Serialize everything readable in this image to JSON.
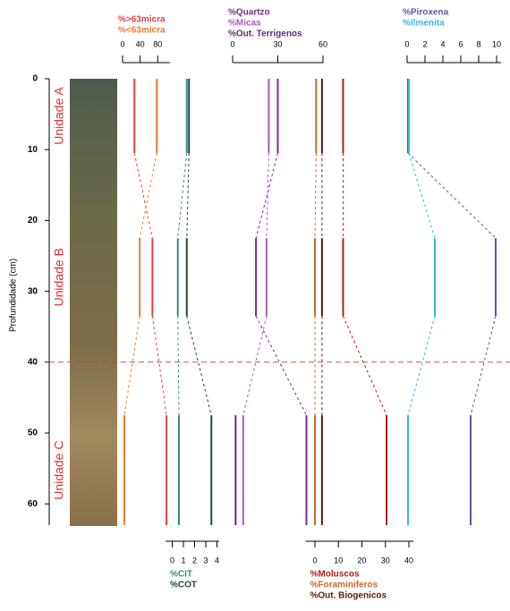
{
  "chart_data": {
    "type": "core-log",
    "y_label": "Profundidade (cm)",
    "ylim": [
      0,
      63
    ],
    "yticks": [
      0,
      10,
      20,
      30,
      40,
      50,
      60
    ],
    "reference_depth": 40,
    "reference_color": "#e03030",
    "units": [
      {
        "name": "Unidade A",
        "top": 0,
        "bottom": 10.5
      },
      {
        "name": "Unidade B",
        "top": 22.5,
        "bottom": 33.5
      },
      {
        "name": "Unidade C",
        "top": 47.5,
        "bottom": 63
      }
    ],
    "panels": [
      {
        "axis": "top",
        "xlim": [
          0,
          108
        ],
        "xticks": [
          0,
          40,
          80
        ],
        "series": [
          {
            "name": "%>63micra",
            "color": "#e0404a",
            "values": [
              27,
              68,
              100
            ]
          },
          {
            "name": "%<63micra",
            "color": "#f07a2a",
            "values": [
              78,
              39,
              4
            ]
          }
        ]
      },
      {
        "axis": "bottom",
        "xlim": [
          -0.6,
          4.2
        ],
        "xticks": [
          0,
          1,
          2,
          3,
          4
        ],
        "series": [
          {
            "name": "%CIT",
            "color": "#3a8a80",
            "values": [
              1.3,
              0.5,
              0.6
            ]
          },
          {
            "name": "%COT",
            "color": "#1d4a40",
            "values": [
              1.5,
              1.3,
              3.5
            ]
          }
        ]
      },
      {
        "axis": "top",
        "xlim": [
          0,
          60
        ],
        "xticks": [
          0,
          30,
          60
        ],
        "series": [
          {
            "name": "%Quartzo",
            "color": "#7a2a8a",
            "values": [
              30,
              15.5,
              49
            ]
          },
          {
            "name": "%Micas",
            "color": "#a65cbc",
            "values": [
              24,
              22.5,
              7
            ]
          },
          {
            "name": "%Out. Terrigenos",
            "color": "#5a2d7a",
            "values": [
              null,
              null,
              2
            ]
          }
        ]
      },
      {
        "axis": "bottom",
        "xlim": [
          -4,
          42
        ],
        "xticks": [
          0,
          10,
          20,
          30,
          40
        ],
        "series": [
          {
            "name": "%Moluscos",
            "color": "#b01c1c",
            "values": [
              12,
              12,
              30.5
            ]
          },
          {
            "name": "%Foraminiferos",
            "color": "#c86a2a",
            "values": [
              0.5,
              0,
              0
            ]
          },
          {
            "name": "%Out. Biogenicos",
            "color": "#5a1a10",
            "values": [
              3,
              3,
              3
            ]
          }
        ]
      },
      {
        "axis": "top",
        "xlim": [
          0,
          10.5
        ],
        "xticks": [
          0,
          2,
          4,
          6,
          8,
          10
        ],
        "series": [
          {
            "name": "%Piroxena",
            "color": "#5a58a8",
            "values": [
              0.1,
              9.9,
              7.1
            ]
          },
          {
            "name": "%Ilmenita",
            "color": "#38b8e0",
            "values": [
              0.2,
              3.1,
              0.1
            ]
          }
        ]
      }
    ]
  }
}
